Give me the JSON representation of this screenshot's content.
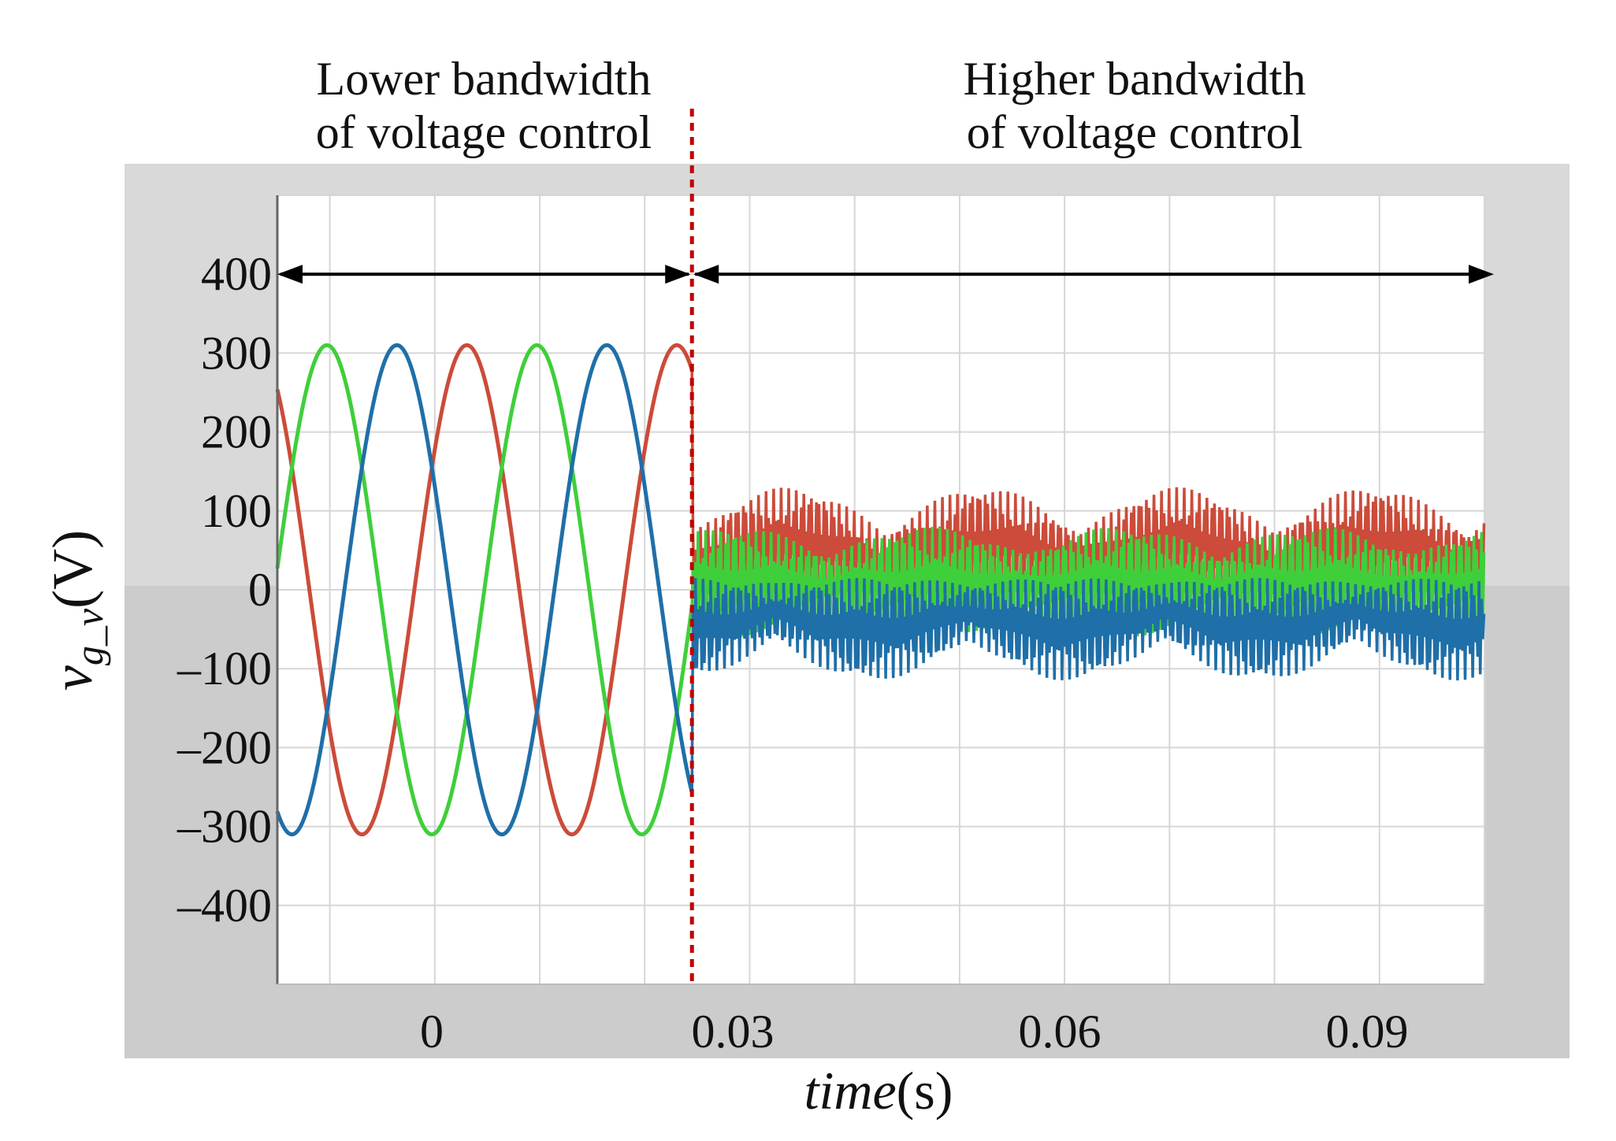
{
  "chart_data": {
    "type": "line",
    "annotations": {
      "left_line1": "Lower bandwidth",
      "left_line2": "of voltage control",
      "right_line1": "Higher bandwidth",
      "right_line2": "of voltage control"
    },
    "xlabel": "time",
    "xlabel_unit": "(s)",
    "ylabel_main": "v",
    "ylabel_sub": "g_v",
    "ylabel_unit": "(V)",
    "xlim": [
      -0.015,
      0.1
    ],
    "ylim": [
      -500,
      500
    ],
    "x_ticks": [
      0,
      0.03,
      0.06,
      0.09
    ],
    "x_tick_labels": [
      "0",
      "0.03",
      "0.06",
      "0.09"
    ],
    "y_ticks": [
      400,
      300,
      200,
      100,
      0,
      -100,
      -200,
      -300,
      -400
    ],
    "y_tick_labels": [
      "400",
      "300",
      "200",
      "100",
      "0",
      "–100",
      "–200",
      "–300",
      "–400"
    ],
    "switch_time": 0.0245,
    "grid": true,
    "series": [
      {
        "color": "#cc4b3a",
        "before": {
          "amplitude": 310,
          "frequency_hz": 50,
          "phase_deg": 35
        },
        "after": {
          "offset": 60,
          "ripple_amplitude": 70,
          "envelope_period_s": 0.0185
        }
      },
      {
        "color": "#3fcf3a",
        "before": {
          "amplitude": 310,
          "frequency_hz": 50,
          "phase_deg": -85
        },
        "after": {
          "offset": 10,
          "ripple_amplitude": 70,
          "envelope_period_s": 0.0185
        }
      },
      {
        "color": "#1f6fa8",
        "before": {
          "amplitude": 310,
          "frequency_hz": 50,
          "phase_deg": 155
        },
        "after": {
          "offset": -50,
          "ripple_amplitude": 65,
          "envelope_period_s": 0.0185
        }
      }
    ],
    "colors": {
      "outer_band": "#d9d9d9",
      "lower_band": "#cccccc",
      "plot_bg": "#ffffff",
      "grid": "#d6d6d6",
      "divider": "#c00000",
      "arrow": "#000000"
    }
  }
}
